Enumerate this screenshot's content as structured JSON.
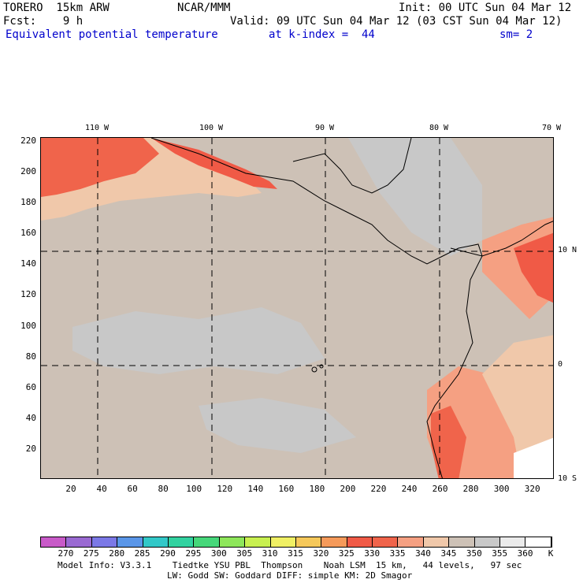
{
  "header": {
    "model": "TORERO  15km ARW",
    "center": "NCAR/MMM",
    "init": "Init: 00 UTC Sun 04 Mar 12",
    "fcst": "Fcst:    9 h",
    "valid": "Valid: 09 UTC Sun 04 Mar 12 (03 CST Sun 04 Mar 12)",
    "field": "Equivalent potential temperature",
    "level": "at k-index =  44",
    "smoothing": "sm= 2"
  },
  "map": {
    "x_ticks": [
      "20",
      "40",
      "60",
      "80",
      "100",
      "120",
      "140",
      "160",
      "180",
      "200",
      "220",
      "240",
      "260",
      "280",
      "300",
      "320"
    ],
    "y_ticks": [
      "220",
      "200",
      "180",
      "160",
      "140",
      "120",
      "100",
      "80",
      "60",
      "40",
      "20"
    ],
    "lon_labels": [
      "110 W",
      "100 W",
      "90 W",
      "80 W",
      "70 W"
    ],
    "lat_labels": [
      "10 N",
      "0",
      "10 S"
    ],
    "x_range": [
      0,
      334
    ],
    "y_range": [
      0,
      222
    ],
    "background_color": "#cdc1b6"
  },
  "colorbar": {
    "labels": [
      "270",
      "275",
      "280",
      "285",
      "290",
      "295",
      "300",
      "305",
      "310",
      "315",
      "320",
      "325",
      "330",
      "335",
      "340",
      "345",
      "350",
      "355",
      "360",
      "K"
    ],
    "colors": [
      "#c85ac8",
      "#9a6ad2",
      "#7b78e6",
      "#5a96e8",
      "#32c8c8",
      "#32d2a0",
      "#46d77a",
      "#8ee65a",
      "#c8f050",
      "#f0f064",
      "#f5c85a",
      "#f59a5a",
      "#f05a46",
      "#f0644b",
      "#f5a082",
      "#f0c8aa",
      "#cdc1b6",
      "#c8c8c8",
      "#ebebeb",
      "#ffffff"
    ]
  },
  "footer": {
    "line1": "Model Info: V3.3.1    Tiedtke YSU PBL  Thompson    Noah LSM  15 km,   44 levels,   97 sec",
    "line2": "LW: Godd SW: Goddard DIFF: simple KM: 2D Smagor"
  }
}
